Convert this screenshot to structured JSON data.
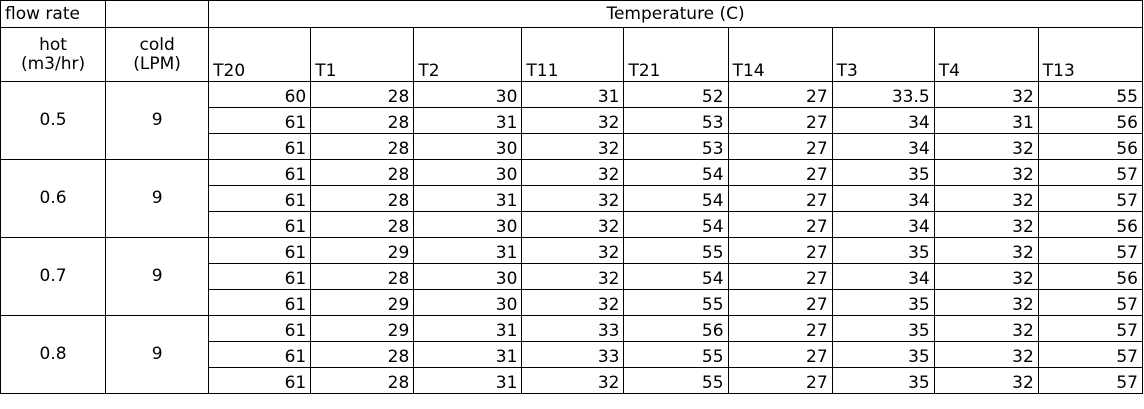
{
  "header": {
    "flow_rate": "flow rate",
    "temperature": "Temperature (C)",
    "hot": [
      "hot",
      "(m3/hr)"
    ],
    "cold": [
      "cold",
      "(LPM)"
    ],
    "columns": [
      "T20",
      "T1",
      "T2",
      "T11",
      "T21",
      "T14",
      "T3",
      "T4",
      "T13"
    ]
  },
  "groups": [
    {
      "hot": "0.5",
      "cold": "9",
      "rows": [
        [
          "60",
          "28",
          "30",
          "31",
          "52",
          "27",
          "33.5",
          "32",
          "55"
        ],
        [
          "61",
          "28",
          "31",
          "32",
          "53",
          "27",
          "34",
          "31",
          "56"
        ],
        [
          "61",
          "28",
          "30",
          "32",
          "53",
          "27",
          "34",
          "32",
          "56"
        ]
      ]
    },
    {
      "hot": "0.6",
      "cold": "9",
      "rows": [
        [
          "61",
          "28",
          "30",
          "32",
          "54",
          "27",
          "35",
          "32",
          "57"
        ],
        [
          "61",
          "28",
          "31",
          "32",
          "54",
          "27",
          "34",
          "32",
          "57"
        ],
        [
          "61",
          "28",
          "30",
          "32",
          "54",
          "27",
          "34",
          "32",
          "56"
        ]
      ]
    },
    {
      "hot": "0.7",
      "cold": "9",
      "rows": [
        [
          "61",
          "29",
          "31",
          "32",
          "55",
          "27",
          "35",
          "32",
          "57"
        ],
        [
          "61",
          "28",
          "30",
          "32",
          "54",
          "27",
          "34",
          "32",
          "56"
        ],
        [
          "61",
          "29",
          "30",
          "32",
          "55",
          "27",
          "35",
          "32",
          "57"
        ]
      ]
    },
    {
      "hot": "0.8",
      "cold": "9",
      "rows": [
        [
          "61",
          "29",
          "31",
          "33",
          "56",
          "27",
          "35",
          "32",
          "57"
        ],
        [
          "61",
          "28",
          "31",
          "33",
          "55",
          "27",
          "35",
          "32",
          "57"
        ],
        [
          "61",
          "28",
          "31",
          "32",
          "55",
          "27",
          "35",
          "32",
          "57"
        ]
      ]
    }
  ]
}
